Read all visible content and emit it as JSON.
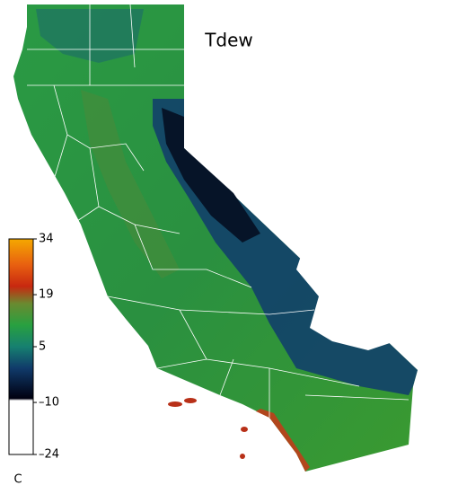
{
  "title": "Tdew",
  "colorbar": {
    "lim": [
      -24,
      34
    ],
    "ticks": [
      34,
      19,
      5,
      {
        "value": -10,
        "label": "–10"
      },
      {
        "value": -24,
        "label": "–24"
      }
    ],
    "unit": "C"
  }
}
